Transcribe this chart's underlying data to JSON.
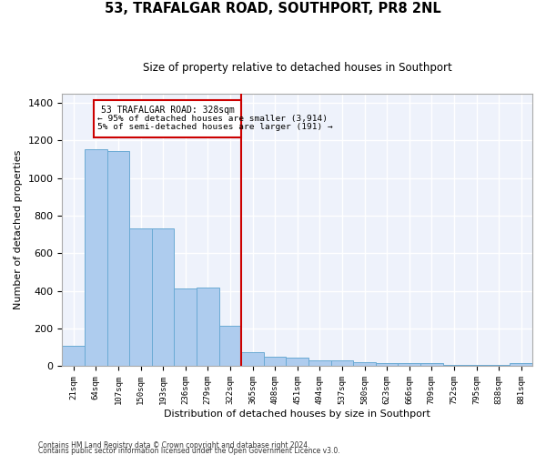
{
  "title": "53, TRAFALGAR ROAD, SOUTHPORT, PR8 2NL",
  "subtitle": "Size of property relative to detached houses in Southport",
  "xlabel": "Distribution of detached houses by size in Southport",
  "ylabel": "Number of detached properties",
  "footer_line1": "Contains HM Land Registry data © Crown copyright and database right 2024.",
  "footer_line2": "Contains public sector information licensed under the Open Government Licence v3.0.",
  "bar_labels": [
    "21sqm",
    "64sqm",
    "107sqm",
    "150sqm",
    "193sqm",
    "236sqm",
    "279sqm",
    "322sqm",
    "365sqm",
    "408sqm",
    "451sqm",
    "494sqm",
    "537sqm",
    "580sqm",
    "623sqm",
    "666sqm",
    "709sqm",
    "752sqm",
    "795sqm",
    "838sqm",
    "881sqm"
  ],
  "bar_values": [
    110,
    1155,
    1145,
    730,
    730,
    415,
    420,
    215,
    75,
    50,
    48,
    32,
    32,
    20,
    18,
    15,
    15,
    8,
    5,
    5,
    15
  ],
  "annotation_title": "53 TRAFALGAR ROAD: 328sqm",
  "annotation_line1": "← 95% of detached houses are smaller (3,914)",
  "annotation_line2": "5% of semi-detached houses are larger (191) →",
  "vline_x": 7.5,
  "bar_color": "#aeccee",
  "bar_edge_color": "#6aaad4",
  "vline_color": "#cc0000",
  "annotation_box_color": "#cc0000",
  "background_color": "#eef2fb",
  "grid_color": "#ffffff",
  "ylim": [
    0,
    1450
  ],
  "yticks": [
    0,
    200,
    400,
    600,
    800,
    1000,
    1200,
    1400
  ]
}
